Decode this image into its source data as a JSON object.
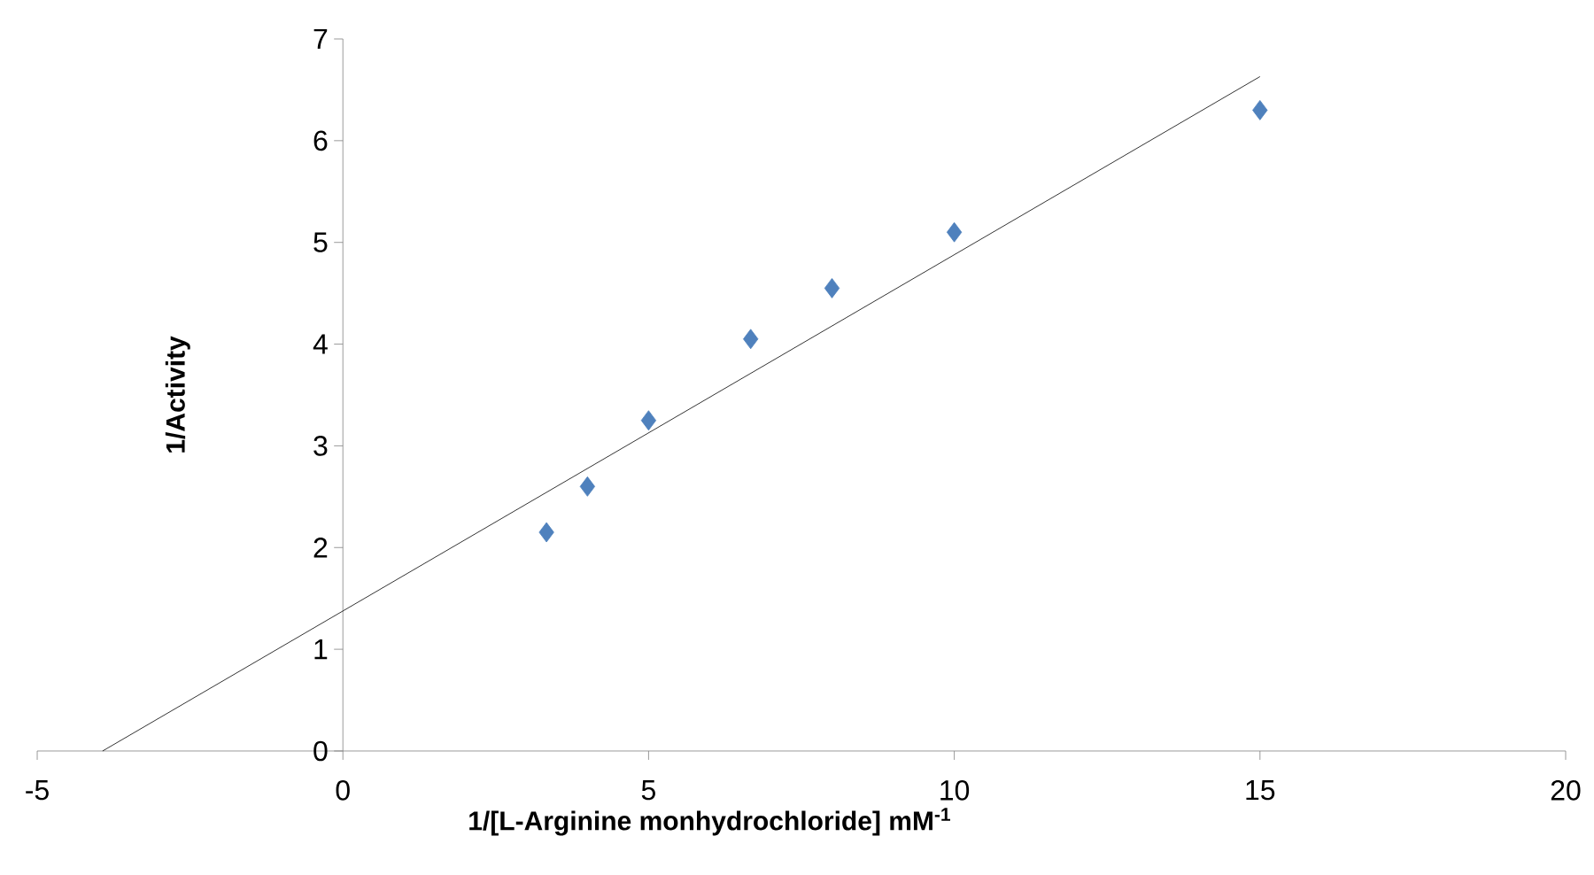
{
  "chart_data": {
    "type": "scatter",
    "xlabel": "1/[L-Arginine monhydrochloride] mM$^{-1}$",
    "ylabel": "1/Activity",
    "xlim": [
      -5,
      20
    ],
    "xticks": [
      -5,
      0,
      5,
      10,
      15,
      20
    ],
    "ylim": [
      0,
      7
    ],
    "yticks": [
      0,
      1,
      2,
      3,
      4,
      5,
      6,
      7
    ],
    "grid": false,
    "series": [
      {
        "color": "#4f81bd",
        "marker": "diamond",
        "x": [
          3.33,
          4,
          5,
          6.67,
          8,
          10,
          15
        ],
        "values": [
          2.15,
          2.6,
          3.25,
          4.05,
          4.55,
          5.1,
          6.3
        ]
      },
      {
        "type": "line",
        "color": "#000000",
        "marker": "none",
        "line_style": "solid",
        "x": [
          -3.93,
          15
        ],
        "values": [
          0,
          6.63
        ]
      }
    ]
  }
}
